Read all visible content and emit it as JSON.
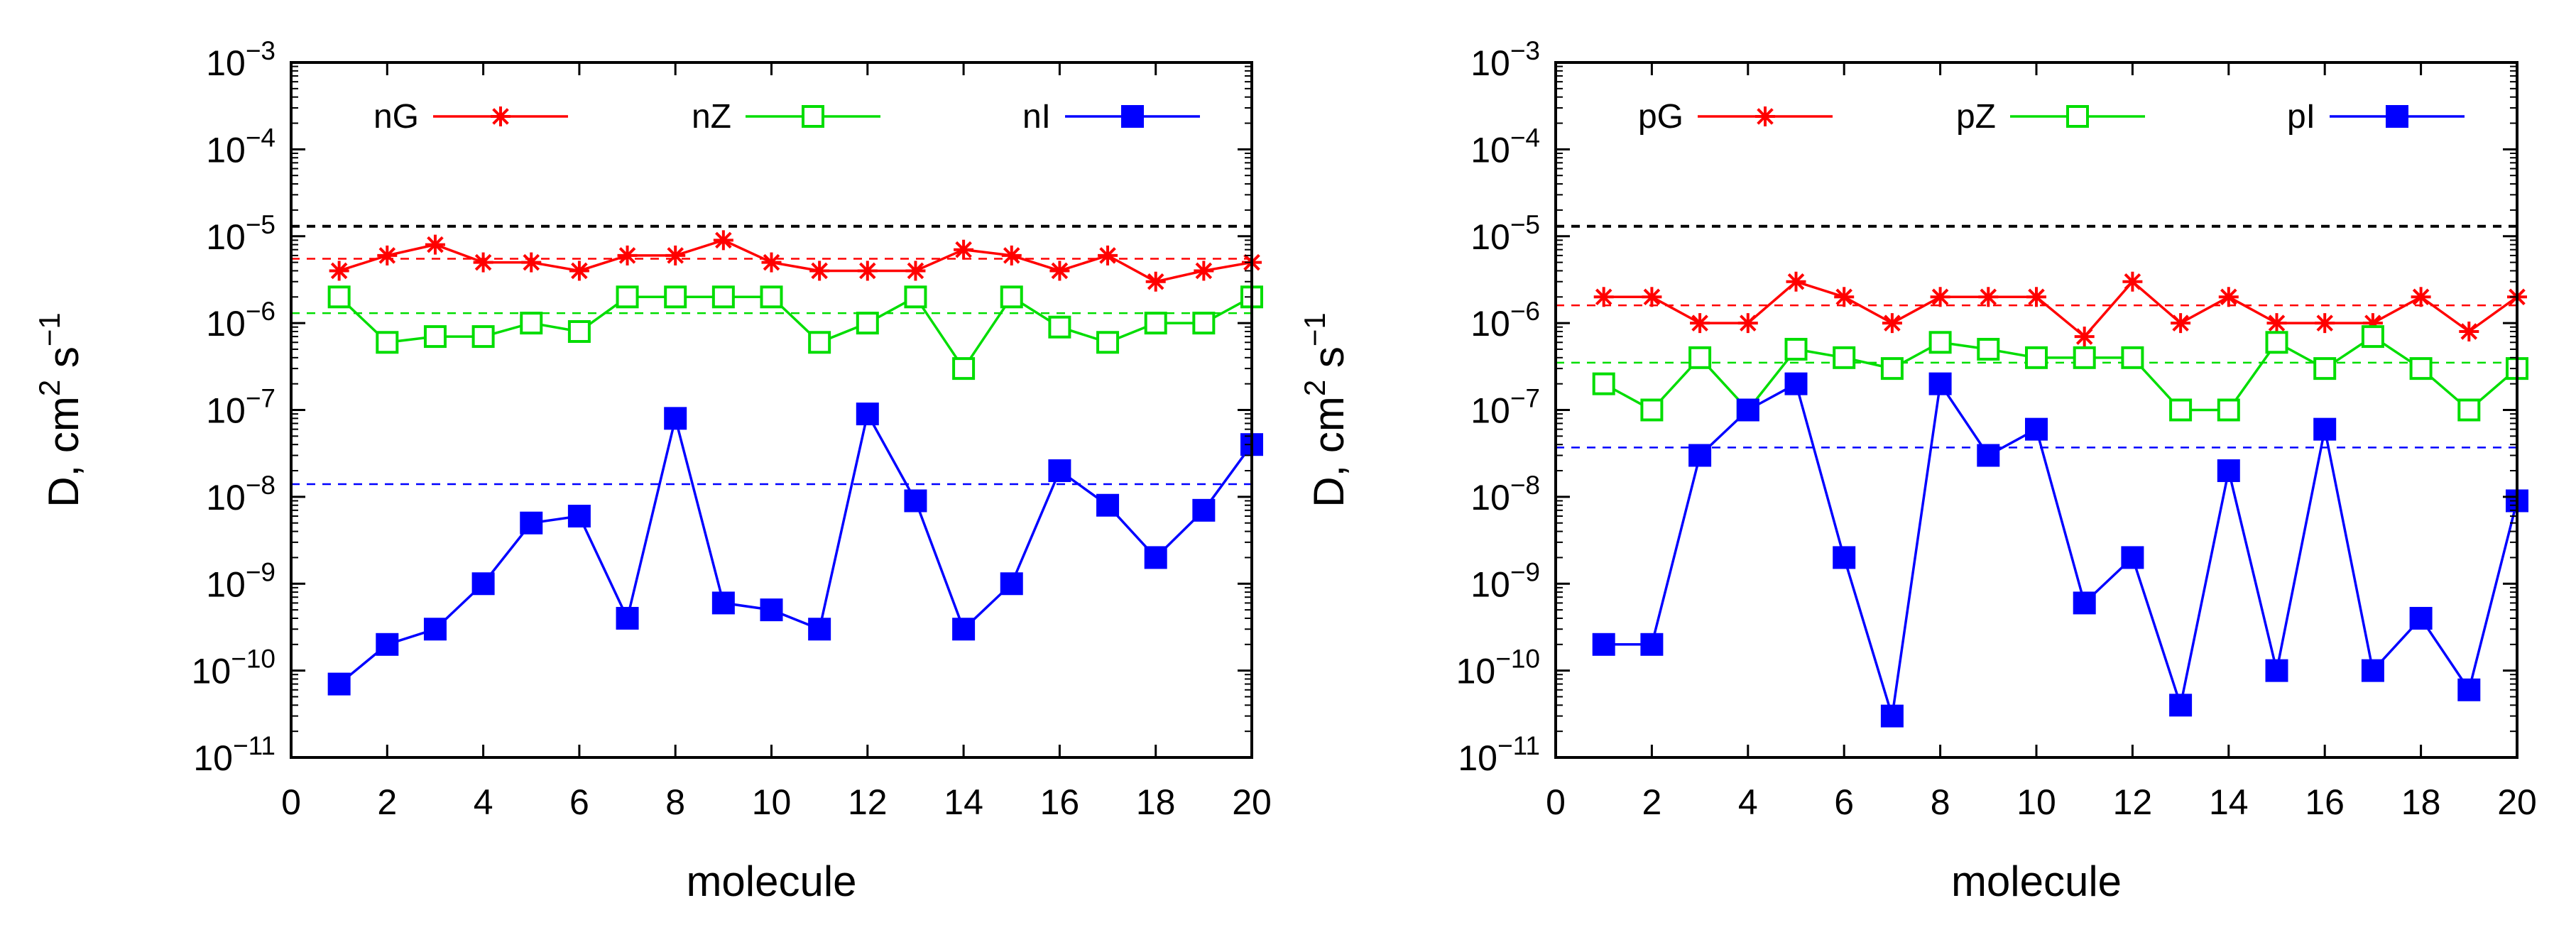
{
  "chart_data": [
    {
      "type": "line",
      "xlabel": "molecule",
      "ylabel": "D, cm",
      "ylabel_sup1": "2",
      "ylabel_mid": " s",
      "ylabel_sup2": "−1",
      "xlim": [
        0,
        20
      ],
      "ylim_exponent": [
        -11,
        -3
      ],
      "y_scale": "log",
      "xticks": [
        "0",
        "2",
        "4",
        "6",
        "8",
        "10",
        "12",
        "14",
        "16",
        "18",
        "20"
      ],
      "yticks": [
        {
          "base": "10",
          "exp": "−11"
        },
        {
          "base": "10",
          "exp": "−10"
        },
        {
          "base": "10",
          "exp": "−9"
        },
        {
          "base": "10",
          "exp": "−8"
        },
        {
          "base": "10",
          "exp": "−7"
        },
        {
          "base": "10",
          "exp": "−6"
        },
        {
          "base": "10",
          "exp": "−5"
        },
        {
          "base": "10",
          "exp": "−4"
        },
        {
          "base": "10",
          "exp": "−3"
        }
      ],
      "x": [
        1,
        2,
        3,
        4,
        5,
        6,
        7,
        8,
        9,
        10,
        11,
        12,
        13,
        14,
        15,
        16,
        17,
        18,
        19,
        20
      ],
      "series": [
        {
          "name": "nG",
          "color": "#ff0000",
          "marker": "star",
          "values": [
            4e-06,
            6e-06,
            8e-06,
            5e-06,
            5e-06,
            4e-06,
            6e-06,
            6e-06,
            9e-06,
            5e-06,
            4e-06,
            4e-06,
            4e-06,
            7e-06,
            6e-06,
            4e-06,
            6e-06,
            3e-06,
            4e-06,
            5e-06
          ]
        },
        {
          "name": "nZ",
          "color": "#00dd00",
          "marker": "open-square",
          "values": [
            2e-06,
            6e-07,
            7e-07,
            7e-07,
            1e-06,
            8e-07,
            2e-06,
            2e-06,
            2e-06,
            2e-06,
            6e-07,
            1e-06,
            2e-06,
            3e-07,
            2e-06,
            9e-07,
            6e-07,
            1e-06,
            1e-06,
            2e-06
          ]
        },
        {
          "name": "nI",
          "color": "#0000ff",
          "marker": "filled-square",
          "values": [
            7e-11,
            2e-10,
            3e-10,
            1e-09,
            5e-09,
            6e-09,
            4e-10,
            8e-08,
            6e-10,
            5e-10,
            3e-10,
            9e-08,
            9e-09,
            3e-10,
            1e-09,
            2e-08,
            8e-09,
            2e-09,
            7e-09,
            4e-08
          ]
        }
      ],
      "reference_lines": [
        {
          "color": "#000000",
          "value": 1.3e-05
        },
        {
          "color": "#ff0000",
          "value": 5.5e-06
        },
        {
          "color": "#00dd00",
          "value": 1.3e-06
        },
        {
          "color": "#0000ff",
          "value": 1.4e-08
        }
      ]
    },
    {
      "type": "line",
      "xlabel": "molecule",
      "ylabel": "D, cm",
      "ylabel_sup1": "2",
      "ylabel_mid": " s",
      "ylabel_sup2": "−1",
      "xlim": [
        0,
        20
      ],
      "ylim_exponent": [
        -11,
        -3
      ],
      "y_scale": "log",
      "xticks": [
        "0",
        "2",
        "4",
        "6",
        "8",
        "10",
        "12",
        "14",
        "16",
        "18",
        "20"
      ],
      "yticks": [
        {
          "base": "10",
          "exp": "−11"
        },
        {
          "base": "10",
          "exp": "−10"
        },
        {
          "base": "10",
          "exp": "−9"
        },
        {
          "base": "10",
          "exp": "−8"
        },
        {
          "base": "10",
          "exp": "−7"
        },
        {
          "base": "10",
          "exp": "−6"
        },
        {
          "base": "10",
          "exp": "−5"
        },
        {
          "base": "10",
          "exp": "−4"
        },
        {
          "base": "10",
          "exp": "−3"
        }
      ],
      "x": [
        1,
        2,
        3,
        4,
        5,
        6,
        7,
        8,
        9,
        10,
        11,
        12,
        13,
        14,
        15,
        16,
        17,
        18,
        19,
        20
      ],
      "series": [
        {
          "name": "pG",
          "color": "#ff0000",
          "marker": "star",
          "values": [
            2e-06,
            2e-06,
            1e-06,
            1e-06,
            3e-06,
            2e-06,
            1e-06,
            2e-06,
            2e-06,
            2e-06,
            7e-07,
            3e-06,
            1e-06,
            2e-06,
            1e-06,
            1e-06,
            1e-06,
            2e-06,
            8e-07,
            2e-06
          ]
        },
        {
          "name": "pZ",
          "color": "#00dd00",
          "marker": "open-square",
          "values": [
            2e-07,
            1e-07,
            4e-07,
            1e-07,
            5e-07,
            4e-07,
            3e-07,
            6e-07,
            5e-07,
            4e-07,
            4e-07,
            4e-07,
            1e-07,
            1e-07,
            6e-07,
            3e-07,
            7e-07,
            3e-07,
            1e-07,
            3e-07
          ]
        },
        {
          "name": "pI",
          "color": "#0000ff",
          "marker": "filled-square",
          "values": [
            2e-10,
            2e-10,
            3e-08,
            1e-07,
            2e-07,
            2e-09,
            3e-11,
            2e-07,
            3e-08,
            6e-08,
            6e-10,
            2e-09,
            4e-11,
            2e-08,
            1e-10,
            6e-08,
            1e-10,
            4e-10,
            6e-11,
            9e-09
          ]
        }
      ],
      "reference_lines": [
        {
          "color": "#000000",
          "value": 1.3e-05
        },
        {
          "color": "#ff0000",
          "value": 1.6e-06
        },
        {
          "color": "#00dd00",
          "value": 3.5e-07
        },
        {
          "color": "#0000ff",
          "value": 3.7e-08
        }
      ]
    }
  ]
}
